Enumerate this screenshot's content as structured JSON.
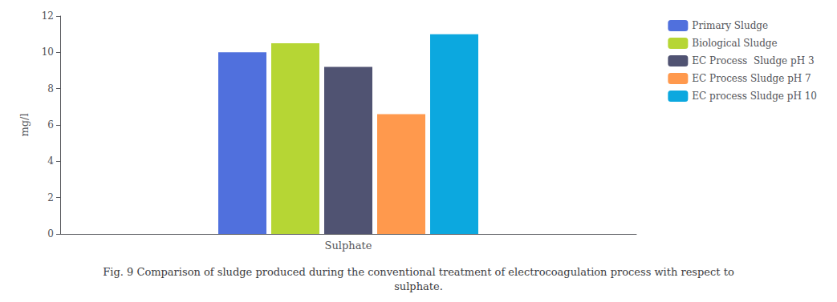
{
  "chart_data": {
    "type": "bar",
    "title": "Fig. 9 Comparison of sludge produced during the conventional treatment of electrocoagulation process with respect to\nsulphate.",
    "categories": [
      "Sulphate"
    ],
    "series": [
      {
        "name": "Primary Sludge",
        "values": [
          10.0
        ]
      },
      {
        "name": "Biological Sludge",
        "values": [
          10.5
        ]
      },
      {
        "name": "EC Process  Sludge pH 3",
        "values": [
          9.2
        ]
      },
      {
        "name": "EC Process Sludge pH 7",
        "values": [
          6.6
        ]
      },
      {
        "name": "EC process Sludge pH 10",
        "values": [
          11.0
        ]
      }
    ],
    "ylabel": "mg/l",
    "ylim": [
      0,
      12
    ],
    "yticks": [
      0,
      2,
      4,
      6,
      8,
      10,
      12
    ],
    "grid": false,
    "legend": "upper right"
  }
}
